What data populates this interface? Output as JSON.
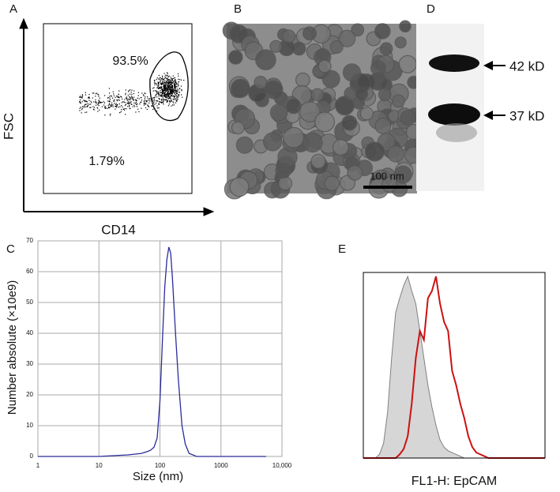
{
  "chart_data": [
    {
      "type": "scatter",
      "panel": "A",
      "xlabel": "CD14",
      "ylabel": "FSC",
      "annotations": [
        "93.5%",
        "1.79%"
      ]
    },
    {
      "type": "image",
      "panel": "B",
      "scale_bar": "100 nm"
    },
    {
      "type": "blot",
      "panel": "D",
      "bands": [
        "42 kD",
        "37 kD"
      ]
    },
    {
      "type": "line",
      "panel": "C",
      "xlabel": "Size (nm)",
      "ylabel": "Number absolute (×10e9)",
      "log_x": true,
      "grid": true,
      "color": "#2b2b9a",
      "x": [
        1,
        10,
        30,
        50,
        60,
        70,
        80,
        90,
        100,
        110,
        120,
        130,
        140,
        150,
        160,
        180,
        200,
        230,
        260,
        300,
        400,
        1000,
        5500
      ],
      "values": [
        0,
        0,
        0.5,
        1,
        1.5,
        2,
        3,
        6,
        18,
        38,
        55,
        64,
        68,
        66,
        58,
        40,
        25,
        10,
        4,
        1,
        0,
        0,
        0
      ],
      "xlim": [
        1,
        10000
      ],
      "xticks": [
        1,
        10,
        100,
        1000,
        {
          "value": 10000,
          "label": "10,000"
        }
      ],
      "ylim": [
        0,
        70
      ],
      "yticks": [
        0,
        10,
        20,
        30,
        40,
        50,
        60,
        70
      ]
    },
    {
      "type": "histogram-overlay",
      "panel": "E",
      "xlabel": "FL1-H: EpCAM",
      "ylim": [
        0,
        100
      ],
      "series": [
        {
          "color": "#808080",
          "fill": "#d6d6d6",
          "values": [
            0,
            0,
            0,
            0,
            2,
            8,
            25,
            55,
            80,
            88,
            95,
            100,
            92,
            85,
            70,
            55,
            40,
            28,
            18,
            10,
            6,
            4,
            3,
            2,
            1,
            0,
            0,
            0,
            0,
            0,
            0,
            0,
            0,
            0,
            0,
            0,
            0,
            0,
            0,
            0,
            0,
            0,
            0,
            0,
            0,
            0
          ]
        },
        {
          "color": "#cc1111",
          "values": [
            0,
            0,
            0,
            0,
            0,
            0,
            0,
            0,
            0,
            2,
            5,
            12,
            30,
            55,
            70,
            65,
            88,
            92,
            100,
            85,
            75,
            70,
            48,
            40,
            30,
            22,
            12,
            6,
            3,
            2,
            1,
            0,
            0,
            0,
            0,
            0,
            0,
            0,
            0,
            0,
            0,
            0,
            0,
            0,
            0,
            0
          ]
        }
      ]
    }
  ]
}
